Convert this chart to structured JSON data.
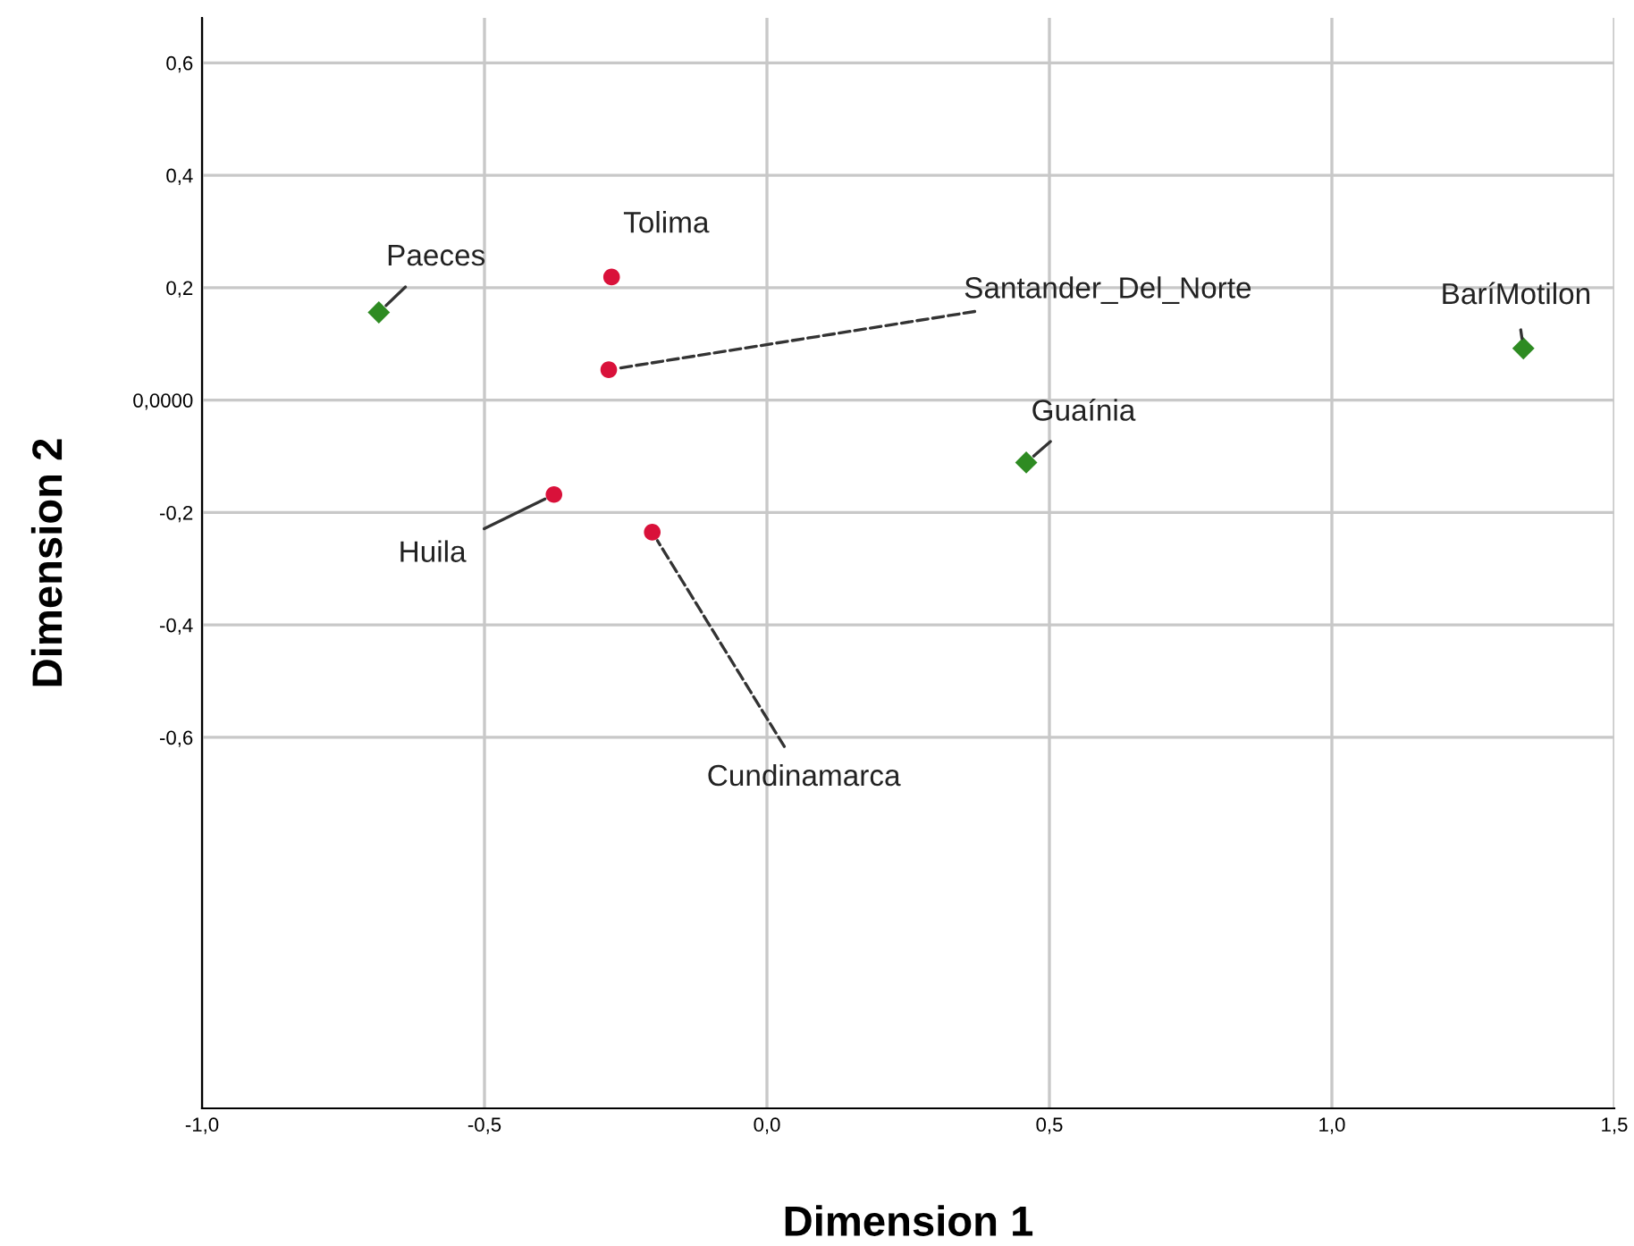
{
  "chart_data": {
    "type": "scatter",
    "xlabel": "Dimension 1",
    "ylabel": "Dimension 2",
    "xlim": [
      -1.0,
      1.5
    ],
    "ylim": [
      -1.26,
      0.68
    ],
    "xticks": [
      {
        "value": -1.0,
        "label": "-1,0"
      },
      {
        "value": -0.5,
        "label": "-0,5"
      },
      {
        "value": 0.0,
        "label": "0,0"
      },
      {
        "value": 0.5,
        "label": "0,5"
      },
      {
        "value": 1.0,
        "label": "1,0"
      },
      {
        "value": 1.5,
        "label": "1,5"
      }
    ],
    "yticks": [
      {
        "value": -0.6,
        "label": "-0,6"
      },
      {
        "value": -0.4,
        "label": "-0,4"
      },
      {
        "value": -0.2,
        "label": "-0,2"
      },
      {
        "value": 0.0,
        "label": "0,0000"
      },
      {
        "value": 0.2,
        "label": "0,2"
      },
      {
        "value": 0.4,
        "label": "0,4"
      },
      {
        "value": 0.6,
        "label": "0,6"
      }
    ],
    "grid": true,
    "legend": false,
    "series": [
      {
        "color": "#d9113a",
        "marker": "circle",
        "x": [
          -0.275,
          -0.28,
          -0.377,
          -0.203
        ],
        "values": [
          0.219,
          0.054,
          -0.168,
          -0.235
        ]
      },
      {
        "color": "#2e8b22",
        "marker": "diamond",
        "x": [
          -0.687,
          0.459,
          1.339
        ],
        "values": [
          0.156,
          -0.111,
          0.092
        ]
      }
    ],
    "annotations": [
      {
        "text": "Tolima",
        "x": -0.275,
        "y": 0.219
      },
      {
        "text": "Santander_Del_Norte",
        "x": -0.28,
        "y": 0.054
      },
      {
        "text": "Huila",
        "x": -0.377,
        "y": -0.168
      },
      {
        "text": "Cundinamarca",
        "x": -0.203,
        "y": -0.235
      },
      {
        "text": "Paeces",
        "x": -0.687,
        "y": 0.156
      },
      {
        "text": "Guaínia",
        "x": 0.459,
        "y": -0.111
      },
      {
        "text": "BaríMotilon",
        "x": 1.339,
        "y": 0.092
      }
    ]
  }
}
